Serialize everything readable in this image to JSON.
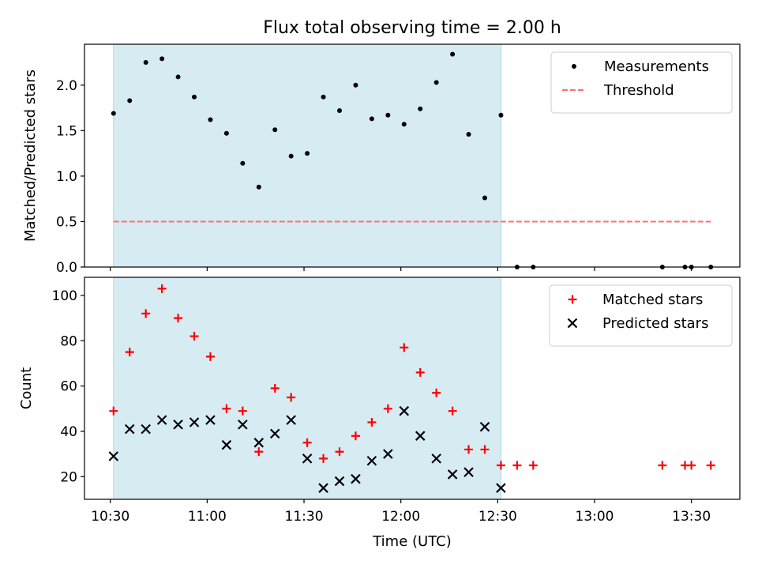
{
  "chart_data": {
    "type": "scatter",
    "title": "Flux total observing time = 2.00 h",
    "xlabel": "Time (UTC)",
    "x_ticks": [
      "10:30",
      "11:00",
      "11:30",
      "12:00",
      "12:30",
      "13:00",
      "13:30"
    ],
    "x_range": [
      "10:22",
      "13:45"
    ],
    "shaded_span": {
      "start": "10:31",
      "end": "12:31",
      "color": "#add8e6"
    },
    "panels": [
      {
        "ylabel": "Matched/Predicted stars",
        "ylim": [
          0,
          2.45
        ],
        "y_ticks": [
          "0.0",
          "0.5",
          "1.0",
          "1.5",
          "2.0"
        ],
        "legend_position": "upper right",
        "series": [
          {
            "name": "Measurements",
            "marker": "dot",
            "color": "#000000",
            "points": [
              [
                "10:31",
                1.69
              ],
              [
                "10:36",
                1.83
              ],
              [
                "10:41",
                2.25
              ],
              [
                "10:46",
                2.29
              ],
              [
                "10:51",
                2.09
              ],
              [
                "10:56",
                1.87
              ],
              [
                "11:01",
                1.62
              ],
              [
                "11:06",
                1.47
              ],
              [
                "11:11",
                1.14
              ],
              [
                "11:16",
                0.88
              ],
              [
                "11:21",
                1.51
              ],
              [
                "11:26",
                1.22
              ],
              [
                "11:31",
                1.25
              ],
              [
                "11:36",
                1.87
              ],
              [
                "11:41",
                1.72
              ],
              [
                "11:46",
                2.0
              ],
              [
                "11:51",
                1.63
              ],
              [
                "11:56",
                1.67
              ],
              [
                "12:01",
                1.57
              ],
              [
                "12:06",
                1.74
              ],
              [
                "12:11",
                2.03
              ],
              [
                "12:16",
                2.34
              ],
              [
                "12:21",
                1.46
              ],
              [
                "12:26",
                0.76
              ],
              [
                "12:31",
                1.67
              ],
              [
                "12:36",
                0.0
              ],
              [
                "12:41",
                0.0
              ],
              [
                "13:21",
                0.0
              ],
              [
                "13:28",
                0.0
              ],
              [
                "13:30",
                0.0
              ],
              [
                "13:36",
                0.0
              ]
            ]
          },
          {
            "name": "Threshold",
            "marker": "dashed-line",
            "color": "#ff6f6f",
            "points": [
              [
                "10:31",
                0.5
              ],
              [
                "13:36",
                0.5
              ]
            ]
          }
        ]
      },
      {
        "ylabel": "Count",
        "ylim": [
          10,
          108
        ],
        "y_ticks": [
          "20",
          "40",
          "60",
          "80",
          "100"
        ],
        "legend_position": "upper right",
        "series": [
          {
            "name": "Matched stars",
            "marker": "plus",
            "color": "#ff0000",
            "points": [
              [
                "10:31",
                49
              ],
              [
                "10:36",
                75
              ],
              [
                "10:41",
                92
              ],
              [
                "10:46",
                103
              ],
              [
                "10:51",
                90
              ],
              [
                "10:56",
                82
              ],
              [
                "11:01",
                73
              ],
              [
                "11:06",
                50
              ],
              [
                "11:11",
                49
              ],
              [
                "11:16",
                31
              ],
              [
                "11:21",
                59
              ],
              [
                "11:26",
                55
              ],
              [
                "11:31",
                35
              ],
              [
                "11:36",
                28
              ],
              [
                "11:41",
                31
              ],
              [
                "11:46",
                38
              ],
              [
                "11:51",
                44
              ],
              [
                "11:56",
                50
              ],
              [
                "12:01",
                77
              ],
              [
                "12:06",
                66
              ],
              [
                "12:11",
                57
              ],
              [
                "12:16",
                49
              ],
              [
                "12:21",
                32
              ],
              [
                "12:26",
                32
              ],
              [
                "12:31",
                25
              ],
              [
                "12:36",
                25
              ],
              [
                "12:41",
                25
              ],
              [
                "13:21",
                25
              ],
              [
                "13:28",
                25
              ],
              [
                "13:30",
                25
              ],
              [
                "13:36",
                25
              ]
            ]
          },
          {
            "name": "Predicted stars",
            "marker": "x",
            "color": "#000000",
            "points": [
              [
                "10:31",
                29
              ],
              [
                "10:36",
                41
              ],
              [
                "10:41",
                41
              ],
              [
                "10:46",
                45
              ],
              [
                "10:51",
                43
              ],
              [
                "10:56",
                44
              ],
              [
                "11:01",
                45
              ],
              [
                "11:06",
                34
              ],
              [
                "11:11",
                43
              ],
              [
                "11:16",
                35
              ],
              [
                "11:21",
                39
              ],
              [
                "11:26",
                45
              ],
              [
                "11:31",
                28
              ],
              [
                "11:36",
                15
              ],
              [
                "11:41",
                18
              ],
              [
                "11:46",
                19
              ],
              [
                "11:51",
                27
              ],
              [
                "11:56",
                30
              ],
              [
                "12:01",
                49
              ],
              [
                "12:06",
                38
              ],
              [
                "12:11",
                28
              ],
              [
                "12:16",
                21
              ],
              [
                "12:21",
                22
              ],
              [
                "12:26",
                42
              ],
              [
                "12:31",
                15
              ]
            ]
          }
        ]
      }
    ]
  }
}
